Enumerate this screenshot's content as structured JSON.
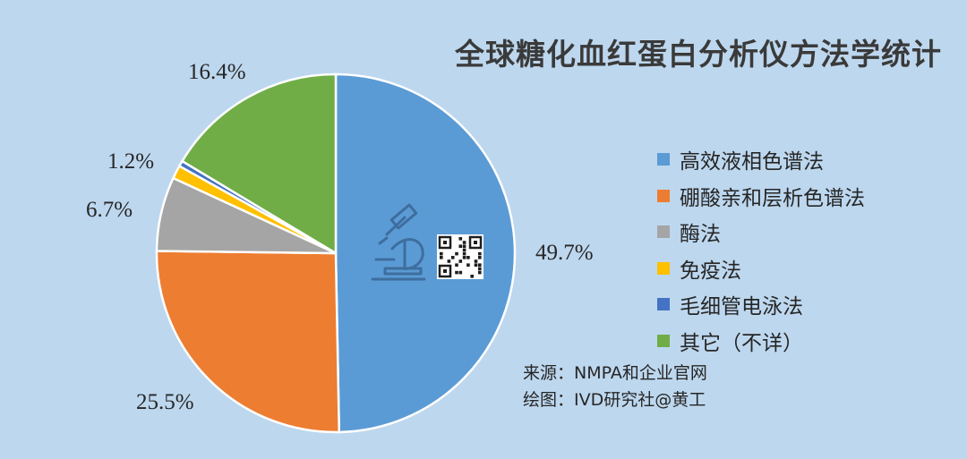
{
  "title": "全球糖化血红蛋白分析仪方法学统计",
  "chart_data": {
    "type": "pie",
    "title": "全球糖化血红蛋白分析仪方法学统计",
    "legend_position": "right",
    "slices": [
      {
        "label": "高效液相色谱法",
        "value": 49.7,
        "value_label": "49.7%",
        "color": "#5B9BD5"
      },
      {
        "label": "硼酸亲和层析色谱法",
        "value": 25.5,
        "value_label": "25.5%",
        "color": "#ED7D31"
      },
      {
        "label": "酶法",
        "value": 6.7,
        "value_label": "6.7%",
        "color": "#A5A5A5"
      },
      {
        "label": "免疫法",
        "value": 1.2,
        "value_label": "1.2%",
        "color": "#FFC000"
      },
      {
        "label": "毛细管电泳法",
        "value": 0.5,
        "value_label": "",
        "color": "#4472C4"
      },
      {
        "label": "其它（不详）",
        "value": 16.4,
        "value_label": "16.4%",
        "color": "#70AD47"
      }
    ]
  },
  "source": {
    "line1": "来源：NMPA和企业官网",
    "line2": "绘图：IVD研究社@黄工"
  },
  "icons": [
    "microscope-icon",
    "qr-code-icon"
  ]
}
